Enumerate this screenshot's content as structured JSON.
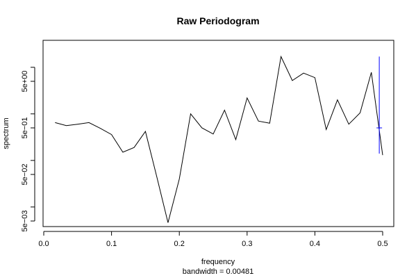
{
  "chart_data": {
    "type": "line",
    "title": "Raw Periodogram",
    "xlabel": "frequency",
    "sublabel": "bandwidth = 0.00481",
    "ylabel": "spectrum",
    "y_scale": "log",
    "xlim": [
      0,
      0.5
    ],
    "ylim": [
      0.0025,
      25
    ],
    "x_ticks": [
      0.0,
      0.1,
      0.2,
      0.3,
      0.4,
      0.5
    ],
    "x_tick_labels": [
      "0.0",
      "0.1",
      "0.2",
      "0.3",
      "0.4",
      "0.5"
    ],
    "y_label_ticks": [
      0.005,
      0.05,
      0.5,
      5
    ],
    "y_tick_labels": [
      "5e−03",
      "5e−02",
      "5e−01",
      "5e+00"
    ],
    "y_minor_ticks": [
      0.01,
      0.1,
      1,
      10
    ],
    "series": [
      {
        "color": "#000000",
        "x": [
          0.0167,
          0.0333,
          0.05,
          0.0667,
          0.0833,
          0.1,
          0.1167,
          0.1333,
          0.15,
          0.1667,
          0.1833,
          0.2,
          0.2167,
          0.2333,
          0.25,
          0.2667,
          0.2833,
          0.3,
          0.3167,
          0.3333,
          0.35,
          0.3667,
          0.3833,
          0.4,
          0.4167,
          0.4333,
          0.45,
          0.4667,
          0.4833,
          0.5
        ],
        "values": [
          0.65,
          0.56,
          0.6,
          0.65,
          0.49,
          0.36,
          0.15,
          0.19,
          0.42,
          0.045,
          0.0046,
          0.04,
          1.0,
          0.5,
          0.37,
          1.2,
          0.28,
          2.2,
          0.7,
          0.63,
          17.0,
          5.2,
          7.5,
          6.0,
          0.46,
          2.0,
          0.6,
          1.05,
          7.8,
          0.13
        ]
      }
    ],
    "ci_bar": {
      "color": "#0000ff",
      "x": 0.495,
      "center": 0.5,
      "low": 0.14,
      "high": 17.0
    }
  }
}
